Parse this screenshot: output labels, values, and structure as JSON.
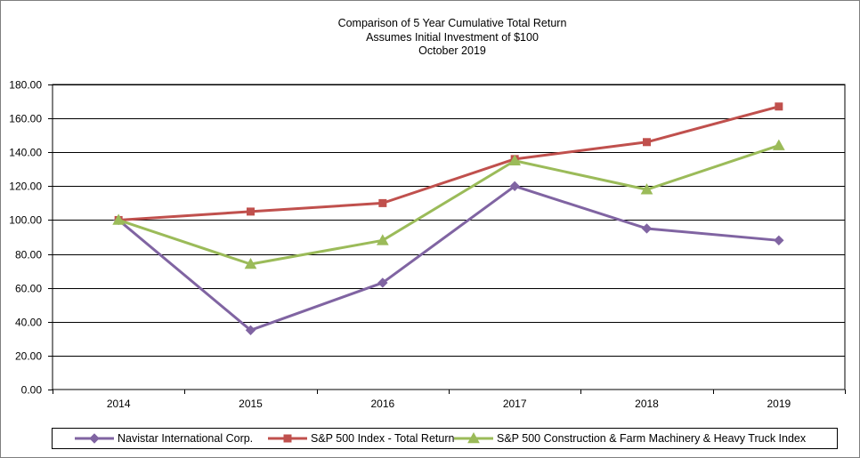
{
  "chart_data": {
    "type": "line",
    "title": [
      "Comparison of 5 Year Cumulative Total Return",
      "Assumes Initial Investment of $100",
      "October 2019"
    ],
    "categories": [
      "2014",
      "2015",
      "2016",
      "2017",
      "2018",
      "2019"
    ],
    "ylim": [
      0,
      180
    ],
    "yticks": [
      "0.00",
      "20.00",
      "40.00",
      "60.00",
      "80.00",
      "100.00",
      "120.00",
      "140.00",
      "160.00",
      "180.00"
    ],
    "grid": true,
    "legend_position": "bottom",
    "series": [
      {
        "name": "Navistar International Corp.",
        "color": "#8064a2",
        "marker": "diamond",
        "values": [
          100,
          35,
          63,
          120,
          95,
          88
        ]
      },
      {
        "name": "S&P 500 Index - Total Return",
        "color": "#c0504d",
        "marker": "square",
        "values": [
          100,
          105,
          110,
          136,
          146,
          167
        ]
      },
      {
        "name": "S&P 500 Construction & Farm Machinery & Heavy Truck Index",
        "color": "#9bbb59",
        "marker": "triangle",
        "values": [
          100,
          74,
          88,
          135,
          118,
          144
        ]
      }
    ]
  }
}
